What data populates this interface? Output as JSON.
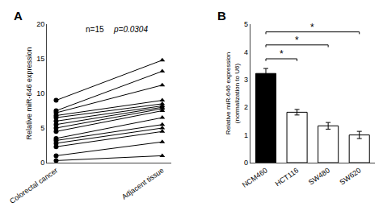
{
  "chart_data": [
    {
      "type": "line",
      "title": "A",
      "ylabel": "Relative miR-646 expression",
      "categories": [
        "Colorectal cancer",
        "Adjacent tissue"
      ],
      "color": "#000000",
      "series": [
        {
          "values": [
            9.0,
            14.8
          ]
        },
        {
          "values": [
            7.5,
            13.2
          ]
        },
        {
          "values": [
            7.2,
            11.2
          ]
        },
        {
          "values": [
            6.8,
            9.0
          ]
        },
        {
          "values": [
            6.5,
            8.5
          ]
        },
        {
          "values": [
            6.0,
            8.2
          ]
        },
        {
          "values": [
            5.5,
            8.0
          ]
        },
        {
          "values": [
            5.0,
            7.8
          ]
        },
        {
          "values": [
            4.5,
            7.5
          ]
        },
        {
          "values": [
            3.5,
            6.5
          ]
        },
        {
          "values": [
            3.2,
            5.5
          ]
        },
        {
          "values": [
            2.8,
            5.0
          ]
        },
        {
          "values": [
            2.3,
            4.5
          ]
        },
        {
          "values": [
            1.0,
            3.0
          ]
        },
        {
          "values": [
            0.3,
            1.0
          ]
        }
      ],
      "annotations": [
        "n=15",
        "p=0.0304"
      ],
      "ylim": [
        0,
        20
      ],
      "yticks": [
        0,
        5,
        10,
        15,
        20
      ],
      "grid": false
    },
    {
      "type": "bar",
      "title": "B",
      "ylabel": "Relative miR-646 expression\n(normalization to U6)",
      "categories": [
        "NCM460",
        "HCT116",
        "SW480",
        "SW620"
      ],
      "values": [
        3.22,
        1.82,
        1.33,
        1.0
      ],
      "errors": [
        0.18,
        0.1,
        0.12,
        0.13
      ],
      "colors": [
        "#000000",
        "#ffffff",
        "#ffffff",
        "#ffffff"
      ],
      "annotations": [
        {
          "text": "*",
          "from": "NCM460",
          "to": "HCT116",
          "y": 3.75
        },
        {
          "text": "*",
          "from": "NCM460",
          "to": "SW480",
          "y": 4.25
        },
        {
          "text": "*",
          "from": "NCM460",
          "to": "SW620",
          "y": 4.72
        }
      ],
      "ylim": [
        0,
        5
      ],
      "yticks": [
        0,
        1,
        2,
        3,
        4,
        5
      ],
      "grid": false
    }
  ]
}
